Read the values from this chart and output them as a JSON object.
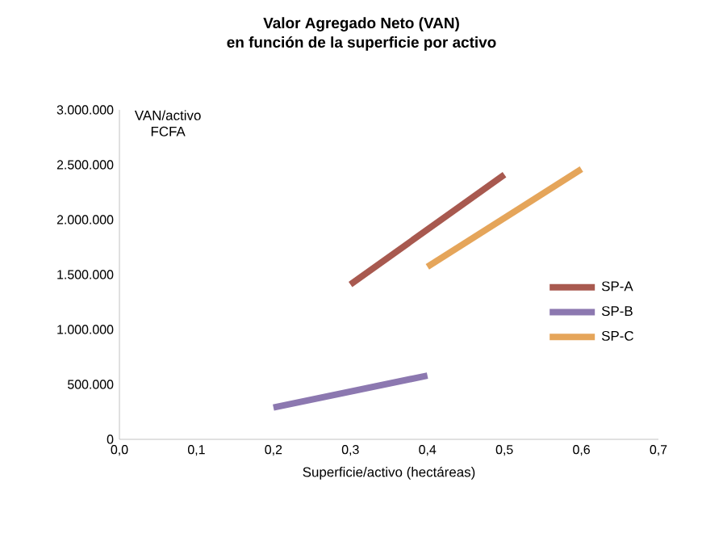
{
  "chart_data": {
    "type": "line",
    "title": "Valor Agregado Neto (VAN)\nen función de la superficie por activo",
    "xlabel": "Superficie/activo (hectáreas)",
    "ylabel": "VAN/activo\nFCFA",
    "series": [
      {
        "name": "SP-A",
        "color": "#a8594f",
        "x": [
          0.3,
          0.5
        ],
        "values": [
          1410000,
          2410000
        ]
      },
      {
        "name": "SP-B",
        "color": "#8c78b0",
        "x": [
          0.2,
          0.4
        ],
        "values": [
          290000,
          580000
        ]
      },
      {
        "name": "SP-C",
        "color": "#e5a55a",
        "x": [
          0.4,
          0.6
        ],
        "values": [
          1570000,
          2460000
        ]
      }
    ],
    "xlim": [
      0,
      0.7
    ],
    "ylim": [
      0,
      3000000
    ],
    "xticks": [
      {
        "value": 0,
        "label": "0,0"
      },
      {
        "value": 0.1,
        "label": "0,1"
      },
      {
        "value": 0.2,
        "label": "0,2"
      },
      {
        "value": 0.3,
        "label": "0,3"
      },
      {
        "value": 0.4,
        "label": "0,4"
      },
      {
        "value": 0.5,
        "label": "0,5"
      },
      {
        "value": 0.6,
        "label": "0,6"
      },
      {
        "value": 0.7,
        "label": "0,7"
      }
    ],
    "yticks": [
      0,
      {
        "value": 500000,
        "label": "500.000"
      },
      {
        "value": 1000000,
        "label": "1.000.000"
      },
      {
        "value": 1500000,
        "label": "1.500.000"
      },
      {
        "value": 2000000,
        "label": "2.000.000"
      },
      {
        "value": 2500000,
        "label": "2.500.000"
      },
      {
        "value": 3000000,
        "label": "3.000.000"
      }
    ],
    "grid": false,
    "legend": "right",
    "marker": "none",
    "line_style": "solid"
  }
}
